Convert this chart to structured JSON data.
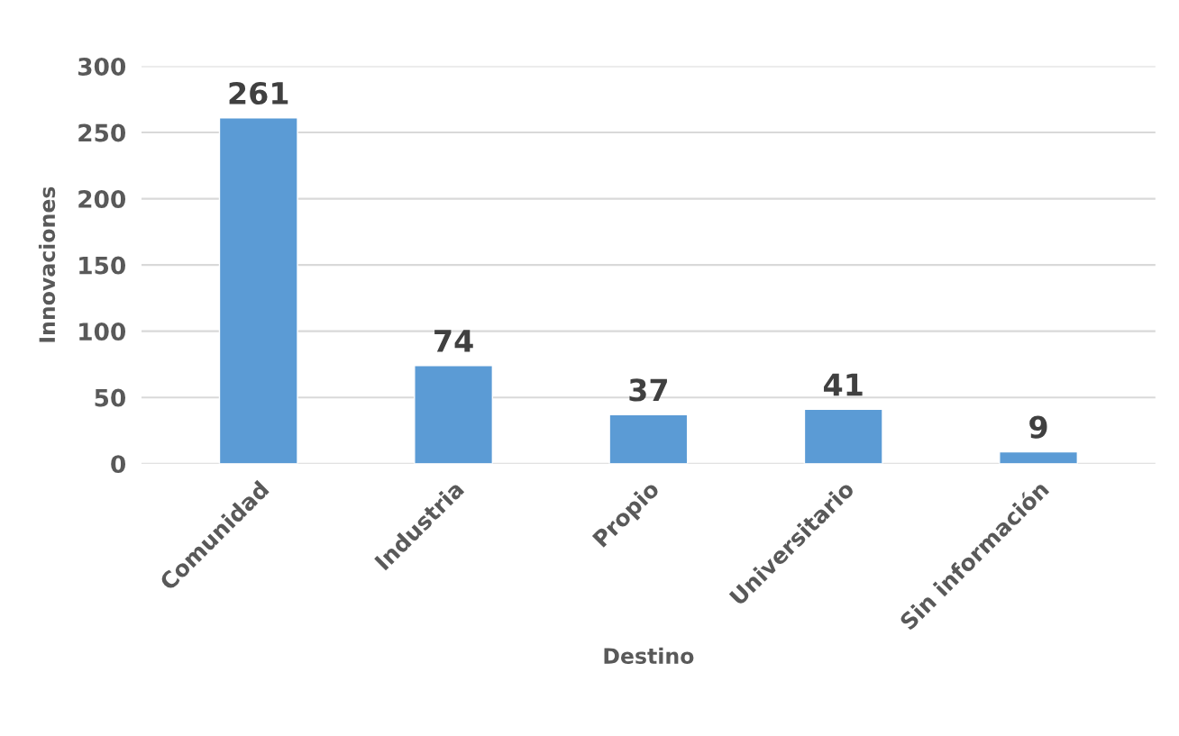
{
  "chart_data": {
    "type": "bar",
    "xlabel": "Destino",
    "ylabel": "Innovaciones",
    "categories": [
      "Comunidad",
      "Industria",
      "Propio",
      "Universitario",
      "Sin información"
    ],
    "values": [
      261,
      74,
      37,
      41,
      9
    ],
    "color": "#5b9bd5",
    "ylim": [
      0,
      300
    ],
    "yticks": [
      0,
      50,
      100,
      150,
      200,
      250,
      300
    ],
    "grid": "y",
    "data_labels": true
  }
}
